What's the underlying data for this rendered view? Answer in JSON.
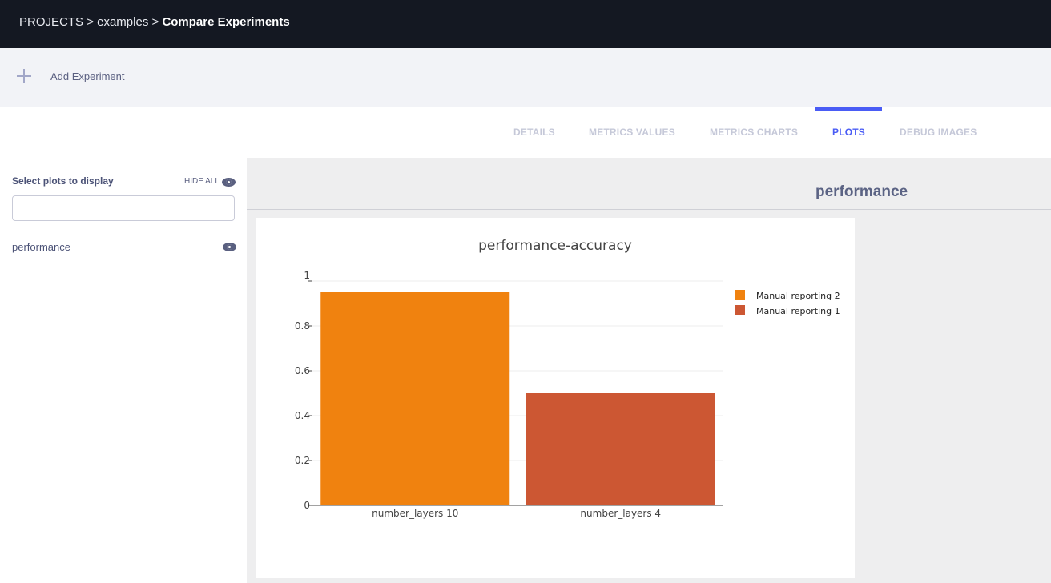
{
  "breadcrumb": {
    "projects": "PROJECTS",
    "sep": ">",
    "project": "examples",
    "current": "Compare Experiments"
  },
  "toolbar": {
    "add_label": "Add Experiment",
    "add_icon": "plus-icon"
  },
  "tabs": [
    {
      "label": "DETAILS"
    },
    {
      "label": "METRICS VALUES"
    },
    {
      "label": "METRICS CHARTS"
    },
    {
      "label": "PLOTS",
      "active": true
    },
    {
      "label": "DEBUG IMAGES"
    }
  ],
  "sidebar": {
    "title": "Select plots to display",
    "hide_all": "HIDE ALL",
    "search_value": "",
    "items": [
      {
        "label": "performance",
        "visible": true
      }
    ]
  },
  "section": {
    "title": "performance"
  },
  "colors": {
    "accent": "#4a5cf5",
    "series_1": "#f0820f",
    "series_2": "#cc5733"
  },
  "chart_data": {
    "type": "bar",
    "title": "performance-accuracy",
    "categories": [
      "number_layers 10",
      "number_layers 4"
    ],
    "series": [
      {
        "name": "Manual reporting 2",
        "color": "#f0820f",
        "values": [
          0.95,
          null
        ]
      },
      {
        "name": "Manual reporting 1",
        "color": "#cc5733",
        "values": [
          null,
          0.5
        ]
      }
    ],
    "ylim": [
      0,
      1
    ],
    "yticks": [
      "0",
      "0.2",
      "0.4",
      "0.6",
      "0.8",
      "1"
    ],
    "grid": true,
    "legend": "top-right"
  }
}
